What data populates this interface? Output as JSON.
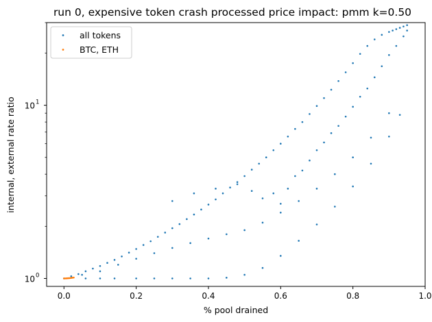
{
  "chart_data": {
    "type": "scatter",
    "title": "run 0, expensive token crash processed price impact: pmm k=0.50",
    "xlabel": "% pool drained",
    "ylabel": "internal, external rate ratio",
    "xlim": [
      -0.048,
      1.0
    ],
    "ylim": [
      0.9,
      30.0
    ],
    "yscale": "log",
    "grid": false,
    "legend_position": "top-left",
    "x_ticks": [
      {
        "value": 0.0,
        "label": "0.0"
      },
      {
        "value": 0.2,
        "label": "0.2"
      },
      {
        "value": 0.4,
        "label": "0.4"
      },
      {
        "value": 0.6,
        "label": "0.6"
      },
      {
        "value": 0.8,
        "label": "0.8"
      },
      {
        "value": 1.0,
        "label": "1.0"
      }
    ],
    "y_major_ticks": [
      {
        "value": 1,
        "base": "10",
        "exp": "0"
      },
      {
        "value": 10,
        "base": "10",
        "exp": "1"
      }
    ],
    "y_minor_ticks": [
      2,
      3,
      4,
      5,
      6,
      7,
      8,
      9,
      20,
      30
    ],
    "series": [
      {
        "name": "all tokens",
        "color": "#1f77b4",
        "x": [
          0.0,
          0.02,
          0.04,
          0.06,
          0.08,
          0.1,
          0.12,
          0.14,
          0.16,
          0.18,
          0.2,
          0.22,
          0.24,
          0.26,
          0.28,
          0.3,
          0.32,
          0.34,
          0.36,
          0.38,
          0.4,
          0.42,
          0.44,
          0.46,
          0.48,
          0.5,
          0.52,
          0.54,
          0.56,
          0.58,
          0.6,
          0.62,
          0.64,
          0.66,
          0.68,
          0.7,
          0.72,
          0.74,
          0.76,
          0.78,
          0.8,
          0.82,
          0.84,
          0.86,
          0.88,
          0.9,
          0.91,
          0.92,
          0.93,
          0.94,
          0.95,
          0.06,
          0.1,
          0.14,
          0.2,
          0.25,
          0.3,
          0.35,
          0.4,
          0.45,
          0.5,
          0.55,
          0.6,
          0.65,
          0.7,
          0.75,
          0.8,
          0.85,
          0.9,
          0.93,
          0.3,
          0.36,
          0.42,
          0.48,
          0.52,
          0.55,
          0.58,
          0.6,
          0.62,
          0.64,
          0.66,
          0.68,
          0.7,
          0.72,
          0.74,
          0.76,
          0.78,
          0.8,
          0.82,
          0.84,
          0.86,
          0.88,
          0.9,
          0.92,
          0.94,
          0.95,
          0.05,
          0.1,
          0.15,
          0.2,
          0.25,
          0.3,
          0.35,
          0.4,
          0.45,
          0.5,
          0.55,
          0.6,
          0.65,
          0.7,
          0.75,
          0.8,
          0.85,
          0.9
        ],
        "y": [
          1.0,
          1.03,
          1.06,
          1.1,
          1.14,
          1.18,
          1.23,
          1.28,
          1.34,
          1.41,
          1.48,
          1.56,
          1.64,
          1.74,
          1.84,
          1.95,
          2.06,
          2.2,
          2.34,
          2.5,
          2.67,
          2.86,
          3.1,
          3.35,
          3.6,
          3.9,
          4.25,
          4.6,
          5.0,
          5.5,
          6.0,
          6.6,
          7.3,
          8.0,
          8.9,
          9.9,
          11.0,
          12.3,
          13.8,
          15.5,
          17.5,
          19.8,
          22.0,
          24.0,
          25.5,
          26.5,
          27.0,
          27.5,
          28.0,
          28.5,
          29.0,
          1.0,
          1.0,
          1.0,
          1.0,
          1.0,
          1.0,
          1.0,
          1.0,
          1.01,
          1.05,
          1.15,
          1.35,
          1.65,
          2.05,
          2.6,
          3.4,
          4.6,
          6.6,
          8.8,
          2.8,
          3.1,
          3.3,
          3.5,
          3.2,
          2.9,
          3.1,
          2.7,
          3.3,
          3.9,
          4.2,
          4.8,
          5.5,
          6.1,
          6.9,
          7.6,
          8.6,
          9.8,
          11.2,
          12.5,
          14.5,
          16.8,
          19.5,
          22.0,
          25.0,
          27.0,
          1.05,
          1.1,
          1.2,
          1.3,
          1.4,
          1.5,
          1.6,
          1.7,
          1.8,
          1.9,
          2.1,
          2.4,
          2.8,
          3.3,
          4.0,
          5.0,
          6.5,
          9.0
        ]
      },
      {
        "name": "BTC, ETH",
        "color": "#ff7f0e",
        "x": [
          0.0,
          0.003,
          0.006,
          0.009,
          0.012,
          0.015,
          0.018,
          0.021,
          0.024,
          0.027
        ],
        "y": [
          1.0,
          1.0,
          1.001,
          1.002,
          1.003,
          1.004,
          1.006,
          1.008,
          1.01,
          1.012
        ]
      }
    ]
  }
}
